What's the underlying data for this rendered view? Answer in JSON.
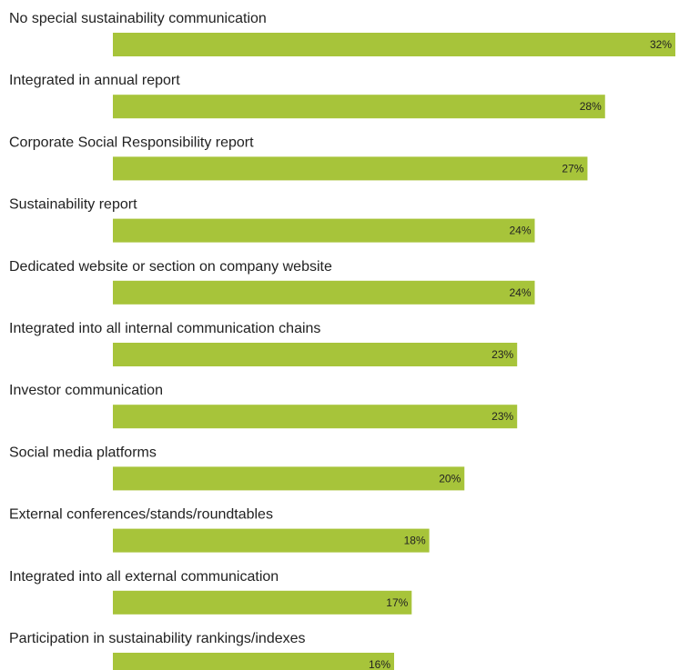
{
  "chart_data": {
    "type": "bar",
    "orientation": "horizontal",
    "categories": [
      "No special sustainability communication",
      "Integrated in annual report",
      "Corporate Social Responsibility report",
      "Sustainability report",
      "Dedicated website or section on company website",
      "Integrated into all internal communication chains",
      "Investor communication",
      "Social media platforms",
      "External conferences/stands/roundtables",
      "Integrated into all external communication",
      "Participation in sustainability rankings/indexes"
    ],
    "values": [
      32,
      28,
      27,
      24,
      24,
      23,
      23,
      20,
      18,
      17,
      16
    ],
    "value_labels": [
      "32%",
      "28%",
      "27%",
      "24%",
      "24%",
      "23%",
      "23%",
      "20%",
      "18%",
      "17%",
      "16%"
    ],
    "unit": "%",
    "title": "",
    "xlabel": "",
    "ylabel": "",
    "xlim": [
      0,
      32
    ],
    "grid": false,
    "legend": "none",
    "bar_color": "#a7c43a",
    "text_color": "#222222"
  }
}
